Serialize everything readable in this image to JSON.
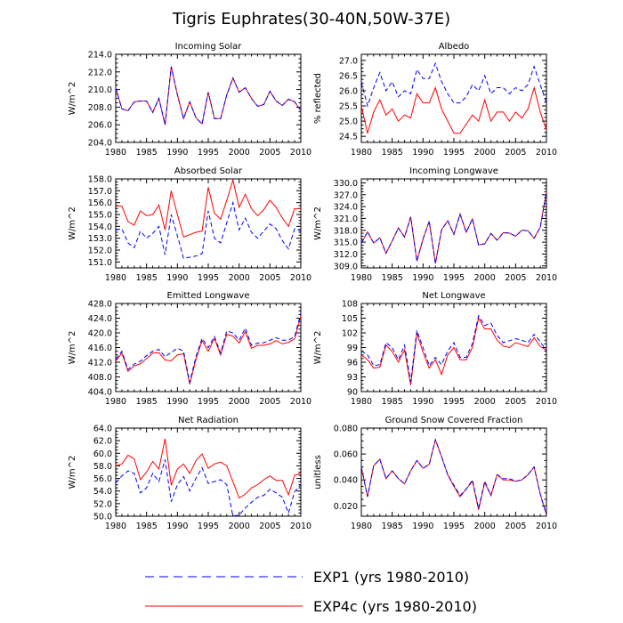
{
  "title": "Tigris Euphrates(30-40N,50W-37E)",
  "legend": {
    "position": "bottom",
    "entries": [
      {
        "label": "EXP1 (yrs 1980-2010)",
        "color": "#0000ff",
        "dash": true
      },
      {
        "label": "EXP4c (yrs 1980-2010)",
        "color": "#ff0000",
        "dash": false
      }
    ]
  },
  "x_ticks": [
    1980,
    1985,
    1990,
    1995,
    2000,
    2005,
    2010
  ],
  "chart_data": [
    {
      "type": "line",
      "title": "Incoming Solar",
      "ylabel": "W/m^2",
      "ylim": [
        204,
        214
      ],
      "yticks": [
        "204.0",
        "206.0",
        "208.0",
        "210.0",
        "212.0",
        "214.0"
      ],
      "x": [
        1980,
        1981,
        1982,
        1983,
        1984,
        1985,
        1986,
        1987,
        1988,
        1989,
        1990,
        1991,
        1992,
        1993,
        1994,
        1995,
        1996,
        1997,
        1998,
        1999,
        2000,
        2001,
        2002,
        2003,
        2004,
        2005,
        2006,
        2007,
        2008,
        2009,
        2010
      ],
      "series": [
        {
          "name": "EXP1",
          "values": [
            210.2,
            207.8,
            207.6,
            208.6,
            208.7,
            208.7,
            207.4,
            209.0,
            206.0,
            212.6,
            209.4,
            206.7,
            208.6,
            206.8,
            206.1,
            209.7,
            206.7,
            206.7,
            209.4,
            211.3,
            209.7,
            210.2,
            209.0,
            208.1,
            208.3,
            209.8,
            208.7,
            208.2,
            208.9,
            208.6,
            207.6
          ]
        },
        {
          "name": "EXP4c",
          "values": [
            210.2,
            207.8,
            207.6,
            208.6,
            208.7,
            208.7,
            207.4,
            209.0,
            206.0,
            212.6,
            209.4,
            206.7,
            208.6,
            206.8,
            206.1,
            209.7,
            206.7,
            206.7,
            209.4,
            211.3,
            209.7,
            210.2,
            209.0,
            208.1,
            208.3,
            209.8,
            208.7,
            208.2,
            208.9,
            208.6,
            207.6
          ]
        }
      ]
    },
    {
      "type": "line",
      "title": "Albedo",
      "ylabel": "% reflected",
      "ylim": [
        24.3,
        27.2
      ],
      "yticks": [
        "24.5",
        "25.0",
        "25.5",
        "26.0",
        "26.5",
        "27.0"
      ],
      "x": [
        1980,
        1981,
        1982,
        1983,
        1984,
        1985,
        1986,
        1987,
        1988,
        1989,
        1990,
        1991,
        1992,
        1993,
        1994,
        1995,
        1996,
        1997,
        1998,
        1999,
        2000,
        2001,
        2002,
        2003,
        2004,
        2005,
        2006,
        2007,
        2008,
        2009,
        2010
      ],
      "series": [
        {
          "name": "EXP1",
          "values": [
            26.3,
            25.5,
            26.1,
            26.6,
            26.0,
            26.3,
            25.8,
            26.0,
            25.9,
            26.7,
            26.4,
            26.4,
            26.9,
            26.3,
            25.9,
            25.6,
            25.6,
            25.8,
            26.2,
            26.0,
            26.5,
            25.9,
            26.1,
            26.1,
            25.9,
            26.1,
            26.0,
            26.2,
            26.8,
            26.2,
            25.6
          ]
        },
        {
          "name": "EXP4c",
          "values": [
            25.5,
            24.6,
            25.3,
            25.7,
            25.2,
            25.4,
            25.0,
            25.2,
            25.1,
            25.9,
            25.6,
            25.6,
            26.1,
            25.4,
            25.0,
            24.6,
            24.6,
            24.9,
            25.2,
            25.0,
            25.7,
            25.0,
            25.3,
            25.3,
            25.0,
            25.3,
            25.1,
            25.4,
            26.1,
            25.3,
            24.7
          ]
        }
      ]
    },
    {
      "type": "line",
      "title": "Absorbed Solar",
      "ylabel": "W/m^2",
      "ylim": [
        150.5,
        158
      ],
      "yticks": [
        "151.0",
        "152.0",
        "153.0",
        "154.0",
        "155.0",
        "156.0",
        "157.0",
        "158.0"
      ],
      "x": [
        1980,
        1981,
        1982,
        1983,
        1984,
        1985,
        1986,
        1987,
        1988,
        1989,
        1990,
        1991,
        1992,
        1993,
        1994,
        1995,
        1996,
        1997,
        1998,
        1999,
        2000,
        2001,
        2002,
        2003,
        2004,
        2005,
        2006,
        2007,
        2008,
        2009,
        2010
      ],
      "series": [
        {
          "name": "EXP1",
          "values": [
            153.7,
            153.8,
            152.6,
            152.2,
            153.6,
            153.0,
            153.4,
            154.0,
            151.6,
            155.0,
            153.2,
            151.3,
            151.4,
            151.5,
            151.7,
            155.3,
            153.0,
            152.6,
            154.3,
            156.0,
            153.7,
            154.7,
            153.5,
            153.0,
            153.6,
            154.2,
            153.8,
            152.8,
            152.1,
            153.8,
            153.6
          ]
        },
        {
          "name": "EXP4c",
          "values": [
            155.7,
            155.7,
            154.4,
            154.1,
            155.3,
            154.9,
            155.0,
            155.8,
            153.7,
            157.0,
            155.0,
            153.1,
            153.3,
            153.5,
            153.6,
            157.3,
            155.1,
            154.6,
            156.2,
            157.9,
            155.6,
            156.7,
            155.5,
            154.9,
            155.4,
            156.2,
            155.6,
            154.7,
            154.0,
            155.5,
            155.5
          ]
        }
      ]
    },
    {
      "type": "line",
      "title": "Incoming Longwave",
      "ylabel": "W/m^2",
      "ylim": [
        308.5,
        331
      ],
      "yticks": [
        "309.0",
        "312.0",
        "315.0",
        "318.0",
        "321.0",
        "324.0",
        "327.0",
        "330.0"
      ],
      "x": [
        1980,
        1981,
        1982,
        1983,
        1984,
        1985,
        1986,
        1987,
        1988,
        1989,
        1990,
        1991,
        1992,
        1993,
        1994,
        1995,
        1996,
        1997,
        1998,
        1999,
        2000,
        2001,
        2002,
        2003,
        2004,
        2005,
        2006,
        2007,
        2008,
        2009,
        2010
      ],
      "series": [
        {
          "name": "EXP1",
          "values": [
            314.7,
            317.6,
            314.8,
            316.1,
            312.2,
            315.3,
            318.6,
            316.3,
            321.4,
            310.2,
            315.8,
            320.3,
            309.6,
            318.1,
            320.4,
            317.0,
            322.1,
            317.5,
            320.9,
            314.3,
            314.6,
            317.2,
            315.5,
            317.4,
            317.3,
            316.5,
            318.0,
            317.9,
            316.0,
            318.8,
            327.8
          ]
        },
        {
          "name": "EXP4c",
          "values": [
            314.7,
            317.6,
            314.8,
            316.1,
            312.2,
            315.3,
            318.6,
            316.3,
            321.4,
            310.2,
            315.8,
            320.3,
            309.6,
            318.1,
            320.4,
            317.0,
            322.1,
            317.5,
            320.9,
            314.3,
            314.6,
            317.2,
            315.5,
            317.4,
            317.3,
            316.5,
            318.0,
            317.9,
            316.0,
            318.8,
            327.8
          ]
        }
      ]
    },
    {
      "type": "line",
      "title": "Emitted Longwave",
      "ylabel": "W/m^2",
      "ylim": [
        404,
        428
      ],
      "yticks": [
        "404.0",
        "408.0",
        "412.0",
        "416.0",
        "420.0",
        "424.0",
        "428.0"
      ],
      "x": [
        1980,
        1981,
        1982,
        1983,
        1984,
        1985,
        1986,
        1987,
        1988,
        1989,
        1990,
        1991,
        1992,
        1993,
        1994,
        1995,
        1996,
        1997,
        1998,
        1999,
        2000,
        2001,
        2002,
        2003,
        2004,
        2005,
        2006,
        2007,
        2008,
        2009,
        2010
      ],
      "series": [
        {
          "name": "EXP1",
          "values": [
            412.8,
            415.0,
            410.0,
            411.5,
            412.3,
            413.8,
            415.0,
            415.5,
            413.5,
            414.7,
            415.8,
            415.0,
            406.5,
            413.5,
            418.5,
            416.0,
            419.0,
            414.5,
            420.5,
            420.0,
            418.0,
            421.3,
            416.6,
            417.2,
            417.3,
            418.0,
            418.7,
            418.0,
            418.0,
            419.0,
            425.3
          ]
        },
        {
          "name": "EXP4c",
          "values": [
            412.3,
            414.5,
            409.5,
            411.0,
            411.6,
            413.0,
            414.5,
            414.6,
            412.6,
            412.4,
            414.0,
            414.3,
            406.0,
            412.8,
            417.9,
            415.0,
            418.5,
            414.0,
            419.6,
            419.1,
            417.2,
            420.3,
            415.8,
            416.6,
            416.6,
            417.0,
            417.9,
            417.0,
            417.4,
            418.4,
            424.6
          ]
        }
      ]
    },
    {
      "type": "line",
      "title": "Net Longwave",
      "ylabel": "W/m^2",
      "ylim": [
        90,
        108
      ],
      "yticks": [
        "90",
        "93",
        "96",
        "99",
        "102",
        "105",
        "108"
      ],
      "x": [
        1980,
        1981,
        1982,
        1983,
        1984,
        1985,
        1986,
        1987,
        1988,
        1989,
        1990,
        1991,
        1992,
        1993,
        1994,
        1995,
        1996,
        1997,
        1998,
        1999,
        2000,
        2001,
        2002,
        2003,
        2004,
        2005,
        2006,
        2007,
        2008,
        2009,
        2010
      ],
      "series": [
        {
          "name": "EXP1",
          "values": [
            98.3,
            97.5,
            95.3,
            95.5,
            100.0,
            99.0,
            96.5,
            99.5,
            92.0,
            102.5,
            99.0,
            95.3,
            97.0,
            95.5,
            98.3,
            100.0,
            97.0,
            97.0,
            99.8,
            105.5,
            103.5,
            104.0,
            101.5,
            100.0,
            100.4,
            100.8,
            100.5,
            100.0,
            101.7,
            100.2,
            98.3
          ]
        },
        {
          "name": "EXP4c",
          "values": [
            97.5,
            96.5,
            94.8,
            95.0,
            99.5,
            98.2,
            96.0,
            98.5,
            91.3,
            102.0,
            98.0,
            94.8,
            96.5,
            93.5,
            97.5,
            99.0,
            96.5,
            96.5,
            99.0,
            105.0,
            102.8,
            102.8,
            100.5,
            99.3,
            99.0,
            100.0,
            99.6,
            99.2,
            101.0,
            99.2,
            98.5
          ]
        }
      ]
    },
    {
      "type": "line",
      "title": "Net Radiation",
      "ylabel": "W/m^2",
      "ylim": [
        50,
        64
      ],
      "yticks": [
        "50.0",
        "52.0",
        "54.0",
        "56.0",
        "58.0",
        "60.0",
        "62.0",
        "64.0"
      ],
      "x": [
        1980,
        1981,
        1982,
        1983,
        1984,
        1985,
        1986,
        1987,
        1988,
        1989,
        1990,
        1991,
        1992,
        1993,
        1994,
        1995,
        1996,
        1997,
        1998,
        1999,
        2000,
        2001,
        2002,
        2003,
        2004,
        2005,
        2006,
        2007,
        2008,
        2009,
        2010
      ],
      "series": [
        {
          "name": "EXP1",
          "values": [
            55.3,
            56.4,
            57.2,
            56.8,
            53.7,
            54.5,
            56.8,
            55.5,
            59.0,
            52.3,
            55.0,
            56.3,
            54.0,
            56.0,
            57.7,
            55.2,
            55.5,
            55.8,
            55.0,
            50.0,
            50.2,
            51.3,
            52.2,
            53.0,
            53.3,
            54.3,
            53.7,
            53.0,
            50.5,
            53.9,
            55.0
          ]
        },
        {
          "name": "EXP4c",
          "values": [
            58.0,
            58.3,
            59.7,
            59.1,
            55.8,
            57.0,
            58.7,
            57.5,
            62.3,
            54.9,
            57.5,
            58.3,
            56.8,
            58.8,
            59.9,
            57.6,
            58.3,
            58.6,
            58.0,
            55.5,
            52.9,
            53.5,
            54.5,
            55.0,
            55.8,
            56.4,
            55.7,
            55.7,
            53.4,
            56.5,
            56.8
          ]
        }
      ]
    },
    {
      "type": "line",
      "title": "Ground Snow Covered Fraction",
      "ylabel": "unitless",
      "ylim": [
        0.012,
        0.08
      ],
      "yticks": [
        "0.020",
        "0.040",
        "0.060",
        "0.080"
      ],
      "x": [
        1980,
        1981,
        1982,
        1983,
        1984,
        1985,
        1986,
        1987,
        1988,
        1989,
        1990,
        1991,
        1992,
        1993,
        1994,
        1995,
        1996,
        1997,
        1998,
        1999,
        2000,
        2001,
        2002,
        2003,
        2004,
        2005,
        2006,
        2007,
        2008,
        2009,
        2010
      ],
      "series": [
        {
          "name": "EXP1",
          "values": [
            0.05,
            0.027,
            0.051,
            0.056,
            0.041,
            0.047,
            0.041,
            0.037,
            0.047,
            0.055,
            0.049,
            0.052,
            0.071,
            0.058,
            0.044,
            0.036,
            0.028,
            0.033,
            0.04,
            0.018,
            0.039,
            0.028,
            0.044,
            0.041,
            0.041,
            0.039,
            0.04,
            0.044,
            0.05,
            0.029,
            0.013
          ]
        },
        {
          "name": "EXP4c",
          "values": [
            0.05,
            0.027,
            0.051,
            0.056,
            0.041,
            0.047,
            0.041,
            0.037,
            0.047,
            0.055,
            0.049,
            0.052,
            0.071,
            0.058,
            0.044,
            0.035,
            0.027,
            0.033,
            0.039,
            0.017,
            0.038,
            0.028,
            0.044,
            0.04,
            0.04,
            0.039,
            0.04,
            0.044,
            0.05,
            0.029,
            0.013
          ]
        }
      ]
    }
  ]
}
